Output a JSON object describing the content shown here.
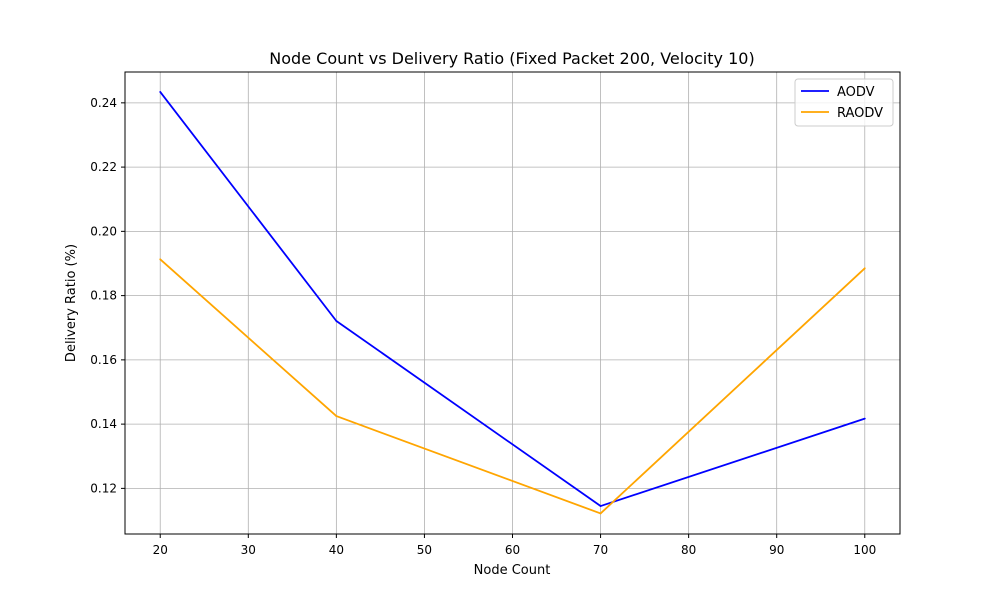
{
  "chart_data": {
    "type": "line",
    "title": "Node Count vs Delivery Ratio (Fixed Packet 200, Velocity 10)",
    "xlabel": "Node Count",
    "ylabel": "Delivery Ratio (%)",
    "x": [
      20,
      40,
      70,
      100
    ],
    "series": [
      {
        "name": "AODV",
        "values": [
          0.2434,
          0.1721,
          0.1145,
          0.1417
        ],
        "color": "#0000ff"
      },
      {
        "name": "RAODV",
        "values": [
          0.1913,
          0.1425,
          0.1122,
          0.1885
        ],
        "color": "#ffa500"
      }
    ],
    "xlim": [
      16,
      104
    ],
    "ylim": [
      0.1058,
      0.2496
    ],
    "xticks": [
      20,
      30,
      40,
      50,
      60,
      70,
      80,
      90,
      100
    ],
    "xtick_labels": [
      "20",
      "30",
      "40",
      "50",
      "60",
      "70",
      "80",
      "90",
      "100"
    ],
    "yticks": [
      0.12,
      0.14,
      0.16,
      0.18,
      0.2,
      0.22,
      0.24
    ],
    "ytick_labels": [
      "0.12",
      "0.14",
      "0.16",
      "0.18",
      "0.20",
      "0.22",
      "0.24"
    ],
    "grid": true,
    "legend_position": "top-right",
    "grid_color": "#b0b0b0"
  }
}
